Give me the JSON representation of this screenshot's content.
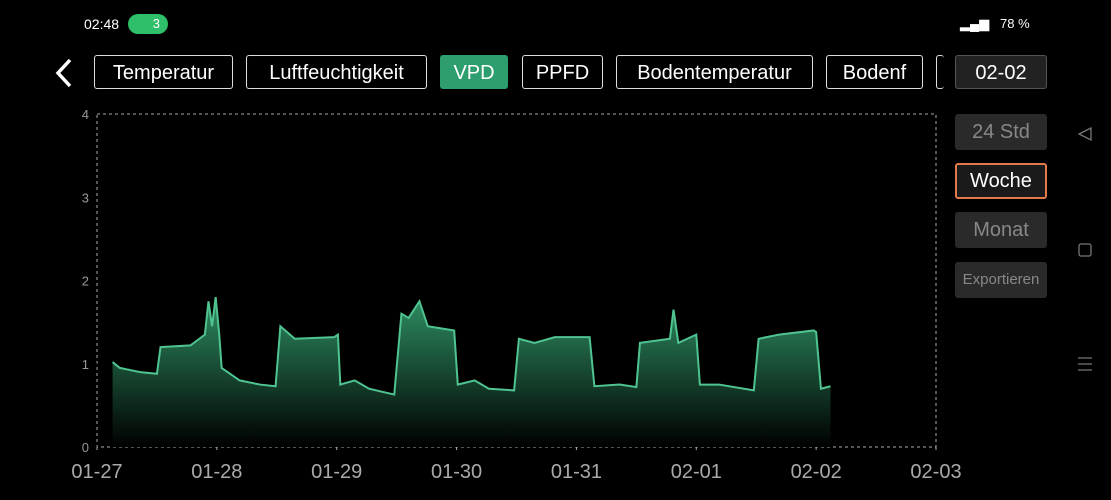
{
  "status_bar": {
    "time": "02:48",
    "hotspot_count": "3",
    "battery": "78 %"
  },
  "tabs": [
    "Temperatur",
    "Luftfeuchtigkeit",
    "VPD",
    "PPFD",
    "Bodentemperatur",
    "Bodenf"
  ],
  "date_button": "02-02",
  "range_buttons": [
    "24 Std",
    "Woche",
    "Monat"
  ],
  "export_button": "Exportieren",
  "chart_data": {
    "type": "area",
    "color": "#4fc490",
    "x": [
      0.13,
      0.19,
      0.36,
      0.5,
      0.53,
      0.78,
      0.9,
      0.93,
      0.96,
      0.99,
      1.02,
      1.04,
      1.19,
      1.36,
      1.49,
      1.53,
      1.65,
      1.98,
      2.01,
      2.03,
      2.15,
      2.27,
      2.48,
      2.54,
      2.6,
      2.69,
      2.76,
      2.98,
      3.01,
      3.15,
      3.27,
      3.48,
      3.52,
      3.65,
      3.82,
      4.11,
      4.15,
      4.36,
      4.5,
      4.53,
      4.78,
      4.81,
      4.85,
      5.0,
      5.03,
      5.19,
      5.48,
      5.52,
      5.69,
      5.98,
      6.0,
      6.04,
      6.12
    ],
    "values": [
      1.02,
      0.95,
      0.9,
      0.88,
      1.2,
      1.22,
      1.35,
      1.75,
      1.45,
      1.8,
      1.35,
      0.95,
      0.8,
      0.75,
      0.73,
      1.45,
      1.3,
      1.32,
      1.35,
      0.75,
      0.8,
      0.7,
      0.63,
      1.6,
      1.55,
      1.75,
      1.45,
      1.4,
      0.75,
      0.8,
      0.7,
      0.68,
      1.3,
      1.25,
      1.32,
      1.32,
      0.73,
      0.75,
      0.72,
      1.25,
      1.3,
      1.65,
      1.25,
      1.35,
      0.75,
      0.75,
      0.68,
      1.3,
      1.35,
      1.4,
      1.38,
      0.7,
      0.73
    ],
    "xlim": [
      0,
      7
    ],
    "xticks": [
      {
        "value": 0,
        "label": "01-27"
      },
      {
        "value": 1,
        "label": "01-28"
      },
      {
        "value": 2,
        "label": "01-29"
      },
      {
        "value": 3,
        "label": "01-30"
      },
      {
        "value": 4,
        "label": "01-31"
      },
      {
        "value": 5,
        "label": "02-01"
      },
      {
        "value": 6,
        "label": "02-02"
      },
      {
        "value": 7,
        "label": "02-03"
      }
    ],
    "ylim": [
      0,
      4
    ],
    "yticks": [
      0,
      1,
      2,
      3,
      4
    ],
    "grid": false
  }
}
